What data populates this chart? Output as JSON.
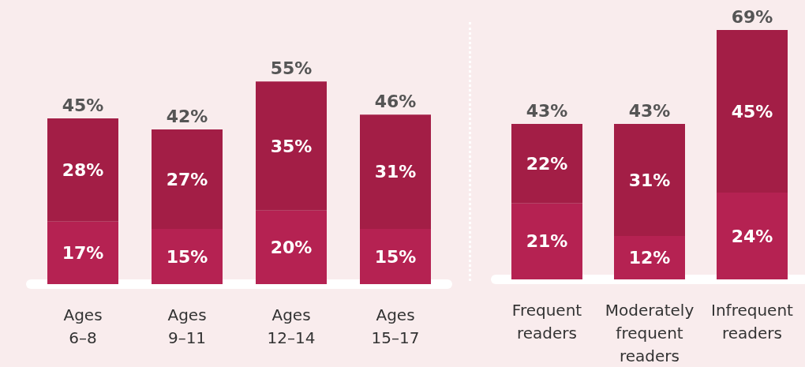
{
  "chart_data": [
    {
      "type": "bar",
      "stacked": true,
      "categories": [
        "Ages\n6–8",
        "Ages\n9–11",
        "Ages\n12–14",
        "Ages\n15–17"
      ],
      "tick_labels": "x",
      "series": [
        {
          "color": "#b52252",
          "values": [
            17,
            15,
            20,
            15
          ],
          "value_labels": [
            "17%",
            "15%",
            "20%",
            "15%"
          ]
        },
        {
          "color": "#a31e46",
          "values": [
            28,
            27,
            35,
            31
          ],
          "value_labels": [
            "28%",
            "27%",
            "35%",
            "31%"
          ]
        }
      ],
      "totals": [
        "45%",
        "42%",
        "55%",
        "46%"
      ]
    },
    {
      "type": "bar",
      "stacked": true,
      "categories": [
        "Frequent\nreaders",
        "Moderately\nfrequent\nreaders",
        "Infrequent\nreaders"
      ],
      "tick_labels": "x",
      "series": [
        {
          "color": "#b52252",
          "values": [
            21,
            12,
            24
          ],
          "value_labels": [
            "21%",
            "12%",
            "24%"
          ]
        },
        {
          "color": "#a31e46",
          "values": [
            22,
            31,
            45
          ],
          "value_labels": [
            "22%",
            "31%",
            "45%"
          ]
        }
      ],
      "totals": [
        "43%",
        "43%",
        "69%"
      ]
    }
  ]
}
